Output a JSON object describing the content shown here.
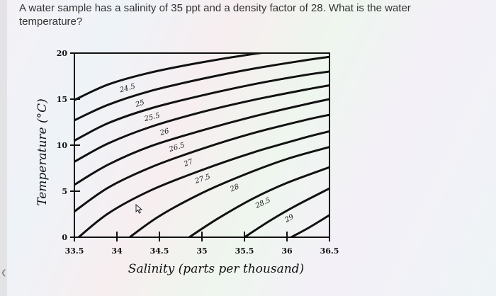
{
  "question": "A water sample has a salinity of 35 ppt and a density factor of 28. What is the water temperature?",
  "chart_data": {
    "type": "line",
    "xlabel": "Salinity (parts per thousand)",
    "ylabel": "Temperature (°C)",
    "xlim": [
      33.5,
      36.5
    ],
    "ylim": [
      0,
      20
    ],
    "x_ticks": [
      "33.5",
      "34",
      "34.5",
      "35",
      "35.5",
      "36",
      "36.5"
    ],
    "y_ticks": [
      "0",
      "5",
      "10",
      "15",
      "20"
    ],
    "series": [
      {
        "name": "24.5",
        "x": [
          33.5,
          33.9,
          34.4,
          35.0,
          35.6,
          36.2,
          36.5
        ],
        "y": [
          14.9,
          16.6,
          17.9,
          19.0,
          19.9,
          20.6,
          20.9
        ]
      },
      {
        "name": "25",
        "x": [
          33.5,
          33.9,
          34.4,
          35.0,
          35.6,
          36.2,
          36.5
        ],
        "y": [
          12.7,
          14.4,
          15.9,
          17.2,
          18.3,
          19.2,
          19.6
        ]
      },
      {
        "name": "25.5",
        "x": [
          33.5,
          33.9,
          34.4,
          35.0,
          35.6,
          36.2,
          36.5
        ],
        "y": [
          10.5,
          12.4,
          14.0,
          15.4,
          16.6,
          17.6,
          18.0
        ]
      },
      {
        "name": "26",
        "x": [
          33.5,
          33.9,
          34.4,
          35.0,
          35.6,
          36.2,
          36.5
        ],
        "y": [
          8.2,
          10.2,
          12.0,
          13.6,
          14.9,
          16.0,
          16.5
        ]
      },
      {
        "name": "26.5",
        "x": [
          33.5,
          33.9,
          34.4,
          35.0,
          35.6,
          36.2,
          36.5
        ],
        "y": [
          5.7,
          7.9,
          9.9,
          11.6,
          13.1,
          14.4,
          15.0
        ]
      },
      {
        "name": "27",
        "x": [
          33.5,
          33.9,
          34.4,
          35.0,
          35.6,
          36.2,
          36.5
        ],
        "y": [
          2.8,
          5.4,
          7.6,
          9.6,
          11.3,
          12.7,
          13.3
        ]
      },
      {
        "name": "27.5",
        "x": [
          33.55,
          33.9,
          34.4,
          35.0,
          35.6,
          36.2,
          36.5
        ],
        "y": [
          0,
          2.6,
          5.1,
          7.3,
          9.2,
          10.8,
          11.5
        ]
      },
      {
        "name": "28",
        "x": [
          34.15,
          34.5,
          35.0,
          35.5,
          36.0,
          36.5
        ],
        "y": [
          0,
          2.3,
          4.8,
          6.8,
          8.5,
          9.8
        ]
      },
      {
        "name": "28.5",
        "x": [
          34.85,
          35.2,
          35.6,
          36.0,
          36.5
        ],
        "y": [
          0,
          2.1,
          4.2,
          5.9,
          7.6
        ]
      },
      {
        "name": "29",
        "x": [
          35.5,
          35.8,
          36.1,
          36.5
        ],
        "y": [
          0,
          1.8,
          3.4,
          5.3
        ]
      },
      {
        "name": "",
        "x": [
          36.05,
          36.25,
          36.5
        ],
        "y": [
          0,
          1.0,
          2.4
        ]
      }
    ]
  }
}
